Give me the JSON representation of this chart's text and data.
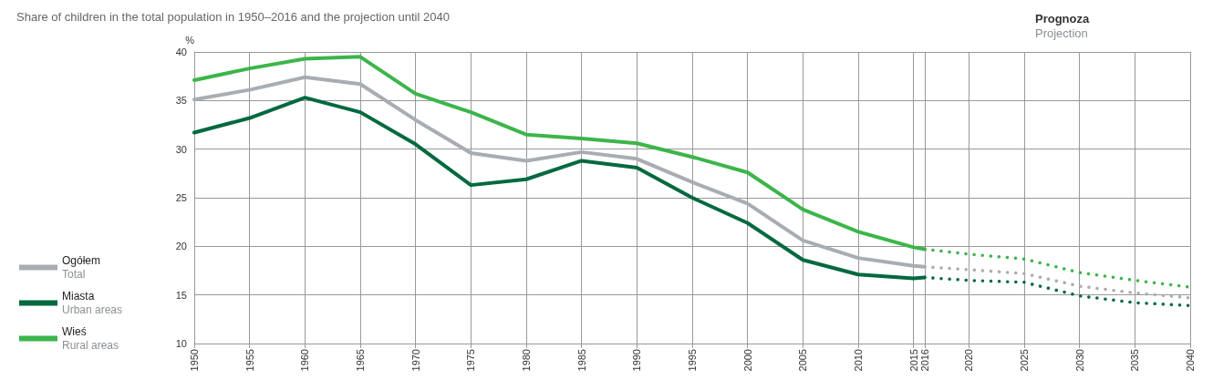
{
  "chart_data": {
    "type": "line",
    "subtitle": "Share of children in the total population in 1950–2016 and the projection until 2040",
    "ylabel": "%",
    "annotations": [
      "Prognoza",
      "Projection"
    ],
    "xlim": [
      1950,
      2040
    ],
    "xticks": [
      1950,
      1955,
      1960,
      1965,
      1970,
      1975,
      1980,
      1985,
      1990,
      1995,
      2000,
      2005,
      2010,
      2015,
      2016,
      2020,
      2025,
      2030,
      2035,
      2040
    ],
    "ylim": [
      10,
      40
    ],
    "yticks": [
      10,
      15,
      20,
      25,
      30,
      35,
      40
    ],
    "grid": true,
    "legend": "left",
    "marker": "none",
    "line_style": "solid",
    "series": [
      {
        "name": "Ogółem\nTotal",
        "color": "#a7adb3",
        "x": [
          1950,
          1955,
          1960,
          1965,
          1970,
          1975,
          1980,
          1985,
          1990,
          1995,
          2000,
          2005,
          2010,
          2015,
          2016
        ],
        "values": [
          35.1,
          36.1,
          37.4,
          36.7,
          33.0,
          29.6,
          28.8,
          29.7,
          29.0,
          26.6,
          24.4,
          20.6,
          18.8,
          18.0,
          17.9
        ]
      },
      {
        "name": "Miasta\nUrban areas",
        "color": "#00693e",
        "x": [
          1950,
          1955,
          1960,
          1965,
          1970,
          1975,
          1980,
          1985,
          1990,
          1995,
          2000,
          2005,
          2010,
          2015,
          2016
        ],
        "values": [
          31.7,
          33.2,
          35.3,
          33.8,
          30.5,
          26.3,
          26.9,
          28.8,
          28.1,
          25.0,
          22.4,
          18.6,
          17.1,
          16.7,
          16.8
        ]
      },
      {
        "name": "Wieś\nRural areas",
        "color": "#3cb54a",
        "x": [
          1950,
          1955,
          1960,
          1965,
          1970,
          1975,
          1980,
          1985,
          1990,
          1995,
          2000,
          2005,
          2010,
          2015,
          2016
        ],
        "values": [
          37.1,
          38.3,
          39.3,
          39.5,
          35.7,
          33.8,
          31.5,
          31.1,
          30.6,
          29.2,
          27.6,
          23.8,
          21.5,
          19.9,
          19.7
        ]
      },
      {
        "color": "#a7adb3",
        "line_style": "dotted",
        "x": [
          2016,
          2020,
          2025,
          2030,
          2035,
          2040
        ],
        "values": [
          17.9,
          17.6,
          17.2,
          15.9,
          15.2,
          14.7
        ]
      },
      {
        "color": "#00693e",
        "line_style": "dotted",
        "x": [
          2016,
          2020,
          2025,
          2030,
          2035,
          2040
        ],
        "values": [
          16.8,
          16.5,
          16.3,
          14.9,
          14.2,
          13.9
        ]
      },
      {
        "color": "#3cb54a",
        "line_style": "dotted",
        "x": [
          2016,
          2020,
          2025,
          2030,
          2035,
          2040
        ],
        "values": [
          19.7,
          19.2,
          18.7,
          17.3,
          16.5,
          15.8
        ]
      }
    ]
  }
}
